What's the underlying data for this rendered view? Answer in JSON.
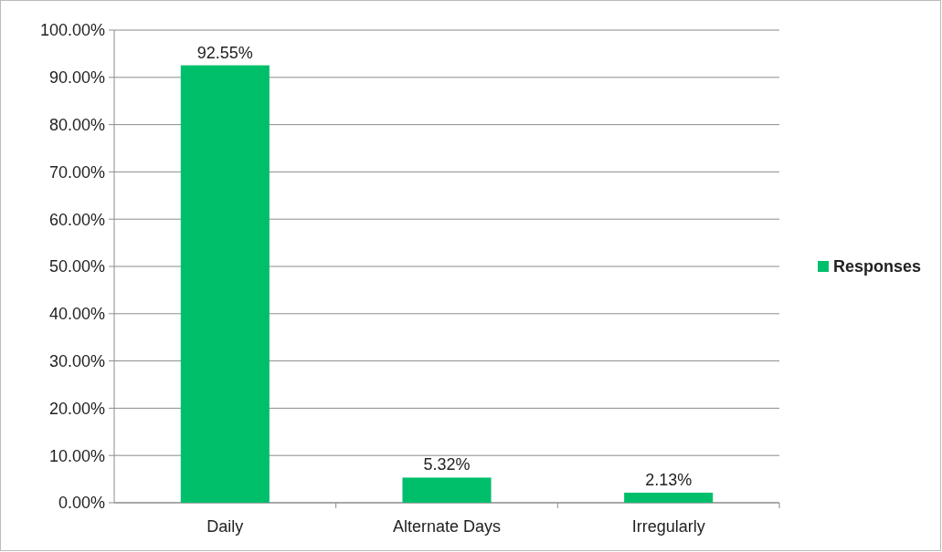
{
  "chart_data": {
    "type": "bar",
    "categories": [
      "Daily",
      "Alternate Days",
      "Irregularly"
    ],
    "series": [
      {
        "name": "Responses",
        "color": "#00bf6b",
        "values": [
          92.55,
          5.32,
          2.13
        ],
        "value_labels": [
          "92.55%",
          "5.32%",
          "2.13%"
        ]
      }
    ],
    "ylim": [
      0,
      100
    ],
    "yticks": [
      {
        "value": 0,
        "label": "0.00%"
      },
      {
        "value": 10,
        "label": "10.00%"
      },
      {
        "value": 20,
        "label": "20.00%"
      },
      {
        "value": 30,
        "label": "30.00%"
      },
      {
        "value": 40,
        "label": "40.00%"
      },
      {
        "value": 50,
        "label": "50.00%"
      },
      {
        "value": 60,
        "label": "60.00%"
      },
      {
        "value": 70,
        "label": "70.00%"
      },
      {
        "value": 80,
        "label": "80.00%"
      },
      {
        "value": 90,
        "label": "90.00%"
      },
      {
        "value": 100,
        "label": "100.00%"
      }
    ],
    "grid": "y",
    "legend": "right"
  }
}
